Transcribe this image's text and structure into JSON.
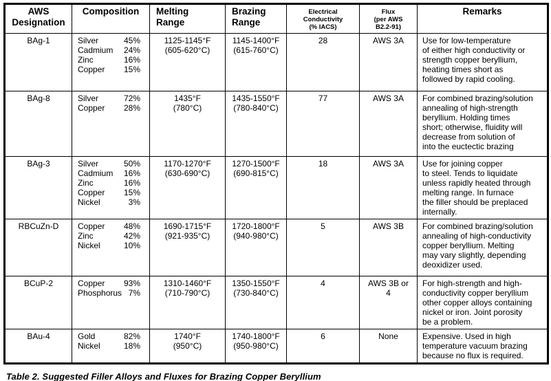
{
  "table": {
    "columns": [
      {
        "label": "AWS\nDesignation",
        "small": false
      },
      {
        "label": "Composition",
        "small": false
      },
      {
        "label": "Melting\nRange",
        "small": false
      },
      {
        "label": "Brazing\nRange",
        "small": false
      },
      {
        "label": "Electrical\nConductivity\n(% IACS)",
        "small": true
      },
      {
        "label": "Flux\n(per AWS\nB2.2-91)",
        "small": true
      },
      {
        "label": "Remarks",
        "small": false
      }
    ],
    "rows": [
      {
        "designation": "BAg-1",
        "composition": [
          {
            "element": "Silver",
            "percent": "45%"
          },
          {
            "element": "Cadmium",
            "percent": "24%"
          },
          {
            "element": "Zinc",
            "percent": "16%"
          },
          {
            "element": "Copper",
            "percent": "15%"
          }
        ],
        "melting_range": "1125-1145°F\n(605-620°C)",
        "brazing_range": "1145-1400°F\n(615-760°C)",
        "conductivity": "28",
        "flux": "AWS 3A",
        "remarks": "Use for low-temperature\nof either high conductivity or\nstrength copper beryllium,\nheating times short as\nfollowed by rapid cooling."
      },
      {
        "designation": "BAg-8",
        "composition": [
          {
            "element": "Silver",
            "percent": "72%"
          },
          {
            "element": "Copper",
            "percent": "28%"
          }
        ],
        "melting_range": "1435°F\n(780°C)",
        "brazing_range": "1435-1550°F\n(780-840°C)",
        "conductivity": "77",
        "flux": "AWS 3A",
        "remarks": "For combined brazing/solution\nannealing of high-strength\nberyllium.  Holding times\nshort; otherwise, fluidity will\ndecrease from solution of\ninto the euctectic brazing"
      },
      {
        "designation": "BAg-3",
        "composition": [
          {
            "element": "Silver",
            "percent": "50%"
          },
          {
            "element": "Cadmium",
            "percent": "16%"
          },
          {
            "element": "Zinc",
            "percent": "16%"
          },
          {
            "element": "Copper",
            "percent": "15%"
          },
          {
            "element": "Nickel",
            "percent": "3%"
          }
        ],
        "melting_range": "1170-1270°F\n(630-690°C)",
        "brazing_range": "1270-1500°F\n(690-815°C)",
        "conductivity": "18",
        "flux": "AWS 3A",
        "remarks": "Use for joining copper\nto steel.  Tends to liquidate\nunless rapidly heated through\nmelting range.  In furnace\nthe filler should be preplaced\ninternally."
      },
      {
        "designation": "RBCuZn-D",
        "composition": [
          {
            "element": "Copper",
            "percent": "48%"
          },
          {
            "element": "Zinc",
            "percent": "42%"
          },
          {
            "element": "Nickel",
            "percent": "10%"
          }
        ],
        "melting_range": "1690-1715°F\n(921-935°C)",
        "brazing_range": "1720-1800°F\n(940-980°C)",
        "conductivity": "5",
        "flux": "AWS 3B",
        "remarks": "For combined brazing/solution\nannealing of high-conductivity\ncopper beryllium.  Melting\nmay vary slightly, depending\ndeoxidizer used."
      },
      {
        "designation": "BCuP-2",
        "composition": [
          {
            "element": "Copper",
            "percent": "93%"
          },
          {
            "element": "Phosphorus",
            "percent": "7%"
          }
        ],
        "melting_range": "1310-1460°F\n(710-790°C)",
        "brazing_range": "1350-1550°F\n(730-840°C)",
        "conductivity": "4",
        "flux": "AWS 3B or\n4",
        "remarks": "For high-strength and high-\nconductivity copper beryllium\nother copper alloys containing\nnickel or iron.  Joint porosity\nbe a problem."
      },
      {
        "designation": "BAu-4",
        "composition": [
          {
            "element": "Gold",
            "percent": "82%"
          },
          {
            "element": "Nickel",
            "percent": "18%"
          }
        ],
        "melting_range": "1740°F\n(950°C)",
        "brazing_range": "1740-1800°F\n(950-980°C)",
        "conductivity": "6",
        "flux": "None",
        "remarks": "Expensive.  Used in high\ntemperature vacuum brazing\nbecause no flux is required."
      }
    ]
  },
  "caption": "Table 2.  Suggested Filler Alloys and Fluxes for Brazing Copper Beryllium"
}
